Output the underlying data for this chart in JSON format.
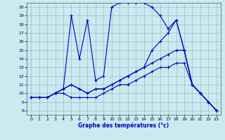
{
  "xlabel": "Graphe des températures (°c)",
  "xlim": [
    -0.5,
    23.5
  ],
  "ylim": [
    7.5,
    20.5
  ],
  "xticks": [
    0,
    1,
    2,
    3,
    4,
    5,
    6,
    7,
    8,
    9,
    10,
    11,
    12,
    13,
    14,
    15,
    16,
    17,
    18,
    19,
    20,
    21,
    22,
    23
  ],
  "yticks": [
    8,
    9,
    10,
    11,
    12,
    13,
    14,
    15,
    16,
    17,
    18,
    19,
    20
  ],
  "bg_color": "#cbe9f0",
  "line_color": "#0000bb",
  "grid_color": "#9bbfc8",
  "lines": [
    {
      "x": [
        0,
        1,
        2,
        3,
        4,
        5,
        6,
        7,
        8,
        9,
        10,
        11,
        12,
        13,
        14,
        15,
        16,
        17,
        18,
        19,
        20,
        21,
        22,
        23
      ],
      "y": [
        9.5,
        9.5,
        9.5,
        10,
        10.5,
        19,
        14,
        18.5,
        11.5,
        12,
        20,
        20.5,
        20.5,
        20.5,
        20.5,
        20,
        19,
        17.5,
        18.5,
        15,
        11,
        10,
        9,
        8
      ]
    },
    {
      "x": [
        0,
        1,
        2,
        3,
        4,
        5,
        6,
        7,
        8,
        9,
        10,
        11,
        12,
        13,
        14,
        15,
        16,
        17,
        18,
        19,
        20,
        21,
        22,
        23
      ],
      "y": [
        9.5,
        9.5,
        9.5,
        10,
        10.5,
        11,
        10.5,
        10,
        10.5,
        10.5,
        11,
        11.5,
        12,
        12.5,
        13,
        15,
        16,
        17,
        18.5,
        15,
        11,
        10,
        9,
        8
      ]
    },
    {
      "x": [
        0,
        1,
        2,
        3,
        4,
        5,
        6,
        7,
        8,
        9,
        10,
        11,
        12,
        13,
        14,
        15,
        16,
        17,
        18,
        19,
        20,
        21,
        22,
        23
      ],
      "y": [
        9.5,
        9.5,
        9.5,
        10,
        10.5,
        11,
        10.5,
        10,
        10.5,
        10.5,
        11,
        11.5,
        12,
        12.5,
        13,
        13.5,
        14,
        14.5,
        15,
        15,
        11,
        10,
        9,
        8
      ]
    },
    {
      "x": [
        0,
        1,
        2,
        3,
        4,
        5,
        6,
        7,
        8,
        9,
        10,
        11,
        12,
        13,
        14,
        15,
        16,
        17,
        18,
        19,
        20,
        21,
        22,
        23
      ],
      "y": [
        9.5,
        9.5,
        9.5,
        10,
        10,
        9.5,
        9.5,
        9.5,
        9.5,
        10,
        10.5,
        11,
        11,
        11.5,
        12,
        12.5,
        13,
        13,
        13.5,
        13.5,
        11,
        10,
        9,
        8
      ]
    }
  ]
}
